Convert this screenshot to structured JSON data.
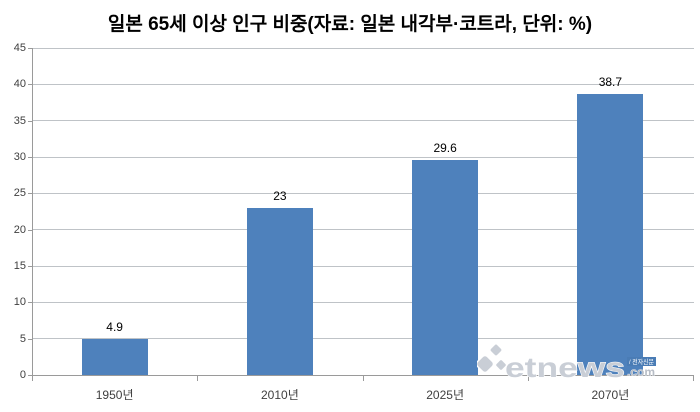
{
  "chart_data": {
    "type": "bar",
    "title": "일본 65세 이상 인구 비중(자료: 일본 내각부·코트라, 단위: %)",
    "categories": [
      "1950년",
      "2010년",
      "2025년",
      "2070년"
    ],
    "values": [
      4.9,
      23,
      29.6,
      38.7
    ],
    "value_labels": [
      "4.9",
      "23",
      "29.6",
      "38.7"
    ],
    "xlabel": "",
    "ylabel": "",
    "ylim": [
      0,
      45
    ],
    "ytick_step": 5,
    "yticks": [
      0,
      5,
      10,
      15,
      20,
      25,
      30,
      35,
      40,
      45
    ],
    "grid": true,
    "legend": "none",
    "bar_color": "#4e81bc",
    "gridline_color": "#bfc3c7",
    "axis_color": "#9a9a9a",
    "tick_label_color": "#3f3f3f",
    "title_color": "#000000"
  },
  "watermark": {
    "brand": "etnews",
    "suffix": ".com",
    "badge": "/ 전자신문",
    "badge_color": "#4a7cb5",
    "letter_color": "#c9ced6",
    "suffix_color": "#b7bdc6",
    "outline_color": "#ffffff"
  }
}
